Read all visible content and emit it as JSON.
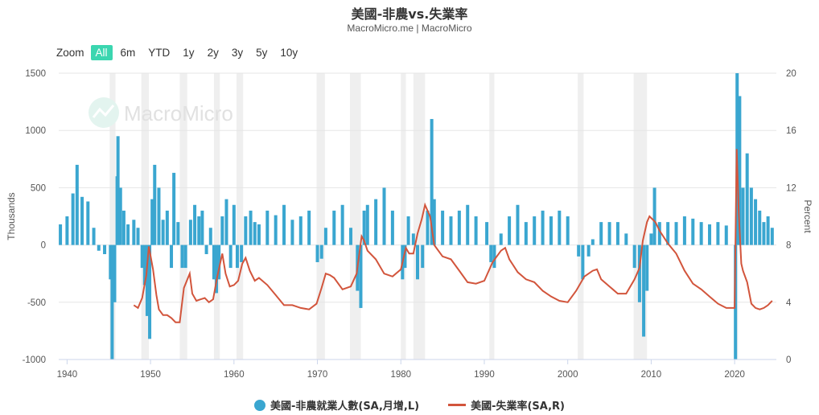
{
  "chart_data": {
    "type": "bar+line",
    "title": "美國-非農vs.失業率",
    "subtitle": "MacroMicro.me | MacroMicro",
    "watermark": "MacroMicro",
    "range_selector": {
      "zoom_label": "Zoom",
      "buttons": [
        "All",
        "6m",
        "YTD",
        "1y",
        "2y",
        "3y",
        "5y",
        "10y"
      ],
      "selected": "All"
    },
    "y_left": {
      "label": "Thousands",
      "ticks": [
        "1500",
        "1000",
        "500",
        "0",
        "-500",
        "-1000"
      ],
      "range": [
        -1000,
        1500
      ]
    },
    "y_right": {
      "label": "Percent",
      "ticks": [
        "20",
        "16",
        "12",
        "8",
        "4",
        "0"
      ],
      "range": [
        0,
        20
      ]
    },
    "x_axis": {
      "ticks": [
        "1940",
        "1950",
        "1960",
        "1970",
        "1980",
        "1990",
        "2000",
        "2010",
        "2020"
      ],
      "range": [
        1939,
        2025
      ]
    },
    "recessions": [
      [
        1945.1,
        1945.8
      ],
      [
        1948.9,
        1949.8
      ],
      [
        1953.5,
        1954.4
      ],
      [
        1957.6,
        1958.3
      ],
      [
        1960.3,
        1961.1
      ],
      [
        1969.9,
        1970.9
      ],
      [
        1973.9,
        1975.2
      ],
      [
        1980.0,
        1980.6
      ],
      [
        1981.5,
        1982.9
      ],
      [
        1990.6,
        1991.2
      ],
      [
        2001.2,
        2001.9
      ],
      [
        2007.9,
        2009.5
      ],
      [
        2020.1,
        2020.4
      ]
    ],
    "series": [
      {
        "name": "美國-非農就業人數(SA,月增,L)",
        "type": "bar",
        "color": "#3aa6d0",
        "points": [
          [
            1939.2,
            180
          ],
          [
            1940,
            250
          ],
          [
            1940.7,
            450
          ],
          [
            1941.2,
            700
          ],
          [
            1941.8,
            420
          ],
          [
            1942.5,
            380
          ],
          [
            1943.2,
            150
          ],
          [
            1943.8,
            -50
          ],
          [
            1944.5,
            -80
          ],
          [
            1945.2,
            -300
          ],
          [
            1945.4,
            -1000
          ],
          [
            1945.7,
            -500
          ],
          [
            1946,
            600
          ],
          [
            1946.1,
            950
          ],
          [
            1946.4,
            500
          ],
          [
            1946.8,
            300
          ],
          [
            1947.3,
            180
          ],
          [
            1948,
            220
          ],
          [
            1948.5,
            150
          ],
          [
            1949,
            -200
          ],
          [
            1949.3,
            -350
          ],
          [
            1949.6,
            -620
          ],
          [
            1949.9,
            -820
          ],
          [
            1950.2,
            400
          ],
          [
            1950.5,
            700
          ],
          [
            1951,
            500
          ],
          [
            1951.5,
            220
          ],
          [
            1952,
            300
          ],
          [
            1952.5,
            -200
          ],
          [
            1952.8,
            630
          ],
          [
            1953.3,
            200
          ],
          [
            1953.8,
            -200
          ],
          [
            1954.2,
            -200
          ],
          [
            1954.8,
            220
          ],
          [
            1955.3,
            350
          ],
          [
            1955.8,
            250
          ],
          [
            1956.2,
            300
          ],
          [
            1956.7,
            -80
          ],
          [
            1957.2,
            150
          ],
          [
            1957.6,
            -300
          ],
          [
            1957.9,
            -420
          ],
          [
            1958.2,
            -300
          ],
          [
            1958.6,
            250
          ],
          [
            1959.1,
            400
          ],
          [
            1959.6,
            -200
          ],
          [
            1960,
            350
          ],
          [
            1960.4,
            -200
          ],
          [
            1960.9,
            -150
          ],
          [
            1961.4,
            250
          ],
          [
            1962,
            300
          ],
          [
            1962.5,
            200
          ],
          [
            1963,
            180
          ],
          [
            1964,
            300
          ],
          [
            1965,
            260
          ],
          [
            1966,
            350
          ],
          [
            1967,
            220
          ],
          [
            1968,
            250
          ],
          [
            1969,
            300
          ],
          [
            1970,
            -150
          ],
          [
            1970.5,
            -120
          ],
          [
            1971,
            150
          ],
          [
            1972,
            300
          ],
          [
            1973,
            350
          ],
          [
            1974,
            150
          ],
          [
            1974.8,
            -400
          ],
          [
            1975.2,
            -550
          ],
          [
            1975.6,
            300
          ],
          [
            1976,
            350
          ],
          [
            1977,
            400
          ],
          [
            1978,
            500
          ],
          [
            1979,
            300
          ],
          [
            1980.2,
            -300
          ],
          [
            1980.5,
            -200
          ],
          [
            1980.9,
            250
          ],
          [
            1981.5,
            100
          ],
          [
            1982,
            -300
          ],
          [
            1982.6,
            -200
          ],
          [
            1983.2,
            300
          ],
          [
            1983.7,
            1100
          ],
          [
            1984,
            400
          ],
          [
            1985,
            300
          ],
          [
            1986,
            250
          ],
          [
            1987,
            300
          ],
          [
            1988,
            350
          ],
          [
            1989,
            250
          ],
          [
            1990.3,
            200
          ],
          [
            1990.8,
            -150
          ],
          [
            1991.2,
            -200
          ],
          [
            1992,
            100
          ],
          [
            1993,
            250
          ],
          [
            1994,
            350
          ],
          [
            1995,
            200
          ],
          [
            1996,
            250
          ],
          [
            1997,
            300
          ],
          [
            1998,
            250
          ],
          [
            1999,
            300
          ],
          [
            2000,
            250
          ],
          [
            2001.3,
            -100
          ],
          [
            2001.8,
            -300
          ],
          [
            2002.5,
            -100
          ],
          [
            2003,
            50
          ],
          [
            2004,
            200
          ],
          [
            2005,
            200
          ],
          [
            2006,
            200
          ],
          [
            2007,
            100
          ],
          [
            2008,
            -200
          ],
          [
            2008.6,
            -500
          ],
          [
            2009.1,
            -800
          ],
          [
            2009.5,
            -400
          ],
          [
            2010,
            100
          ],
          [
            2010.4,
            500
          ],
          [
            2011,
            200
          ],
          [
            2012,
            200
          ],
          [
            2013,
            200
          ],
          [
            2014,
            250
          ],
          [
            2015,
            230
          ],
          [
            2016,
            200
          ],
          [
            2017,
            180
          ],
          [
            2018,
            200
          ],
          [
            2019,
            170
          ],
          [
            2020.1,
            -1000
          ],
          [
            2020.3,
            1500
          ],
          [
            2020.6,
            1300
          ],
          [
            2021,
            500
          ],
          [
            2021.5,
            800
          ],
          [
            2022,
            500
          ],
          [
            2022.5,
            400
          ],
          [
            2023,
            300
          ],
          [
            2023.5,
            200
          ],
          [
            2024,
            250
          ],
          [
            2024.5,
            150
          ]
        ]
      },
      {
        "name": "美國-失業率(SA,R)",
        "type": "line",
        "color": "#d2553c",
        "points": [
          [
            1948,
            3.8
          ],
          [
            1948.5,
            3.6
          ],
          [
            1949,
            4.3
          ],
          [
            1949.5,
            5.9
          ],
          [
            1949.8,
            7.9
          ],
          [
            1950.3,
            6.3
          ],
          [
            1950.7,
            4.5
          ],
          [
            1951,
            3.5
          ],
          [
            1951.5,
            3.1
          ],
          [
            1952,
            3.1
          ],
          [
            1952.5,
            2.9
          ],
          [
            1953,
            2.6
          ],
          [
            1953.5,
            2.6
          ],
          [
            1954,
            5.0
          ],
          [
            1954.7,
            6.0
          ],
          [
            1955,
            4.6
          ],
          [
            1955.5,
            4.1
          ],
          [
            1956,
            4.2
          ],
          [
            1956.5,
            4.3
          ],
          [
            1957,
            4.0
          ],
          [
            1957.5,
            4.2
          ],
          [
            1958,
            5.8
          ],
          [
            1958.6,
            7.4
          ],
          [
            1959,
            6.0
          ],
          [
            1959.5,
            5.1
          ],
          [
            1960,
            5.2
          ],
          [
            1960.5,
            5.5
          ],
          [
            1961,
            6.7
          ],
          [
            1961.4,
            7.1
          ],
          [
            1961.9,
            6.2
          ],
          [
            1962.5,
            5.5
          ],
          [
            1963,
            5.7
          ],
          [
            1964,
            5.2
          ],
          [
            1965,
            4.5
          ],
          [
            1966,
            3.8
          ],
          [
            1967,
            3.8
          ],
          [
            1968,
            3.6
          ],
          [
            1969,
            3.5
          ],
          [
            1969.9,
            3.9
          ],
          [
            1970.5,
            5.0
          ],
          [
            1971,
            6.0
          ],
          [
            1971.5,
            5.9
          ],
          [
            1972,
            5.7
          ],
          [
            1973,
            4.9
          ],
          [
            1974,
            5.1
          ],
          [
            1974.7,
            6.0
          ],
          [
            1975.3,
            8.6
          ],
          [
            1975.6,
            8.3
          ],
          [
            1976,
            7.6
          ],
          [
            1977,
            7.0
          ],
          [
            1978,
            6.0
          ],
          [
            1979,
            5.8
          ],
          [
            1980,
            6.3
          ],
          [
            1980.6,
            7.8
          ],
          [
            1981,
            7.4
          ],
          [
            1981.5,
            7.4
          ],
          [
            1982,
            8.8
          ],
          [
            1982.5,
            9.8
          ],
          [
            1982.9,
            10.8
          ],
          [
            1983.5,
            10.0
          ],
          [
            1984,
            8.0
          ],
          [
            1985,
            7.2
          ],
          [
            1986,
            7.0
          ],
          [
            1987,
            6.2
          ],
          [
            1988,
            5.4
          ],
          [
            1989,
            5.3
          ],
          [
            1990,
            5.5
          ],
          [
            1991,
            6.8
          ],
          [
            1992,
            7.6
          ],
          [
            1992.5,
            7.8
          ],
          [
            1993,
            7.0
          ],
          [
            1994,
            6.1
          ],
          [
            1995,
            5.6
          ],
          [
            1996,
            5.4
          ],
          [
            1997,
            4.8
          ],
          [
            1998,
            4.4
          ],
          [
            1999,
            4.1
          ],
          [
            2000,
            4.0
          ],
          [
            2001,
            4.8
          ],
          [
            2002,
            5.8
          ],
          [
            2003,
            6.2
          ],
          [
            2003.5,
            6.3
          ],
          [
            2004,
            5.6
          ],
          [
            2005,
            5.1
          ],
          [
            2006,
            4.6
          ],
          [
            2007,
            4.6
          ],
          [
            2008,
            5.6
          ],
          [
            2008.6,
            6.4
          ],
          [
            2009,
            8.3
          ],
          [
            2009.5,
            9.6
          ],
          [
            2009.8,
            10.0
          ],
          [
            2010.5,
            9.6
          ],
          [
            2011,
            9.0
          ],
          [
            2012,
            8.1
          ],
          [
            2013,
            7.4
          ],
          [
            2014,
            6.2
          ],
          [
            2015,
            5.3
          ],
          [
            2016,
            4.9
          ],
          [
            2017,
            4.4
          ],
          [
            2018,
            3.9
          ],
          [
            2019,
            3.6
          ],
          [
            2020,
            3.6
          ],
          [
            2020.25,
            14.7
          ],
          [
            2020.5,
            10.2
          ],
          [
            2020.8,
            6.7
          ],
          [
            2021,
            6.2
          ],
          [
            2021.5,
            5.4
          ],
          [
            2022,
            3.9
          ],
          [
            2022.5,
            3.6
          ],
          [
            2023,
            3.5
          ],
          [
            2023.5,
            3.6
          ],
          [
            2024,
            3.8
          ],
          [
            2024.5,
            4.1
          ]
        ]
      }
    ]
  }
}
